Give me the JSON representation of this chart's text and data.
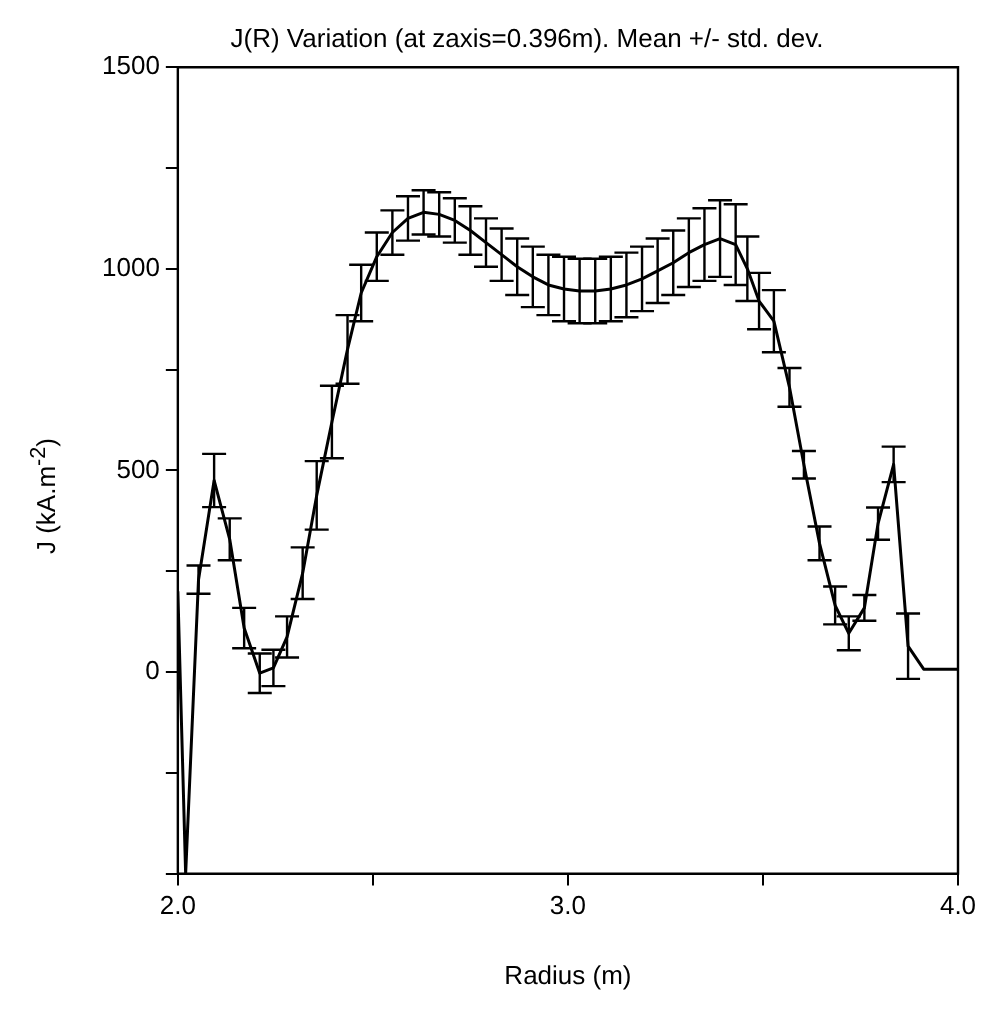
{
  "chart_data": {
    "type": "line",
    "title": "J(R) Variation (at zaxis=0.396m). Mean +/- std. dev.",
    "xlabel": "Radius (m)",
    "ylabel": "J (kA.m$^{-2}$)",
    "color": "#000000",
    "grid": false,
    "x": [
      2.0,
      2.02,
      2.053,
      2.093,
      2.133,
      2.17,
      2.21,
      2.245,
      2.28,
      2.32,
      2.356,
      2.395,
      2.435,
      2.47,
      2.51,
      2.55,
      2.59,
      2.63,
      2.67,
      2.71,
      2.75,
      2.79,
      2.83,
      2.87,
      2.91,
      2.95,
      2.99,
      3.03,
      3.07,
      3.11,
      3.15,
      3.19,
      3.23,
      3.27,
      3.31,
      3.35,
      3.39,
      3.43,
      3.46,
      3.49,
      3.528,
      3.568,
      3.605,
      3.645,
      3.685,
      3.72,
      3.76,
      3.795,
      3.835,
      3.872,
      3.912,
      4.0
    ],
    "values": [
      200,
      -500,
      229,
      475,
      329,
      109,
      -3,
      10,
      87,
      245,
      438,
      620,
      800,
      940,
      1030,
      1090,
      1125,
      1140,
      1135,
      1120,
      1095,
      1065,
      1035,
      1005,
      980,
      960,
      950,
      945,
      945,
      950,
      960,
      975,
      995,
      1015,
      1040,
      1060,
      1075,
      1060,
      1000,
      920,
      870,
      706,
      514,
      319,
      165,
      96,
      159,
      368,
      515,
      64,
      7,
      7
    ],
    "errors": [
      null,
      null,
      35,
      66,
      52,
      50,
      49,
      45,
      51,
      64,
      85,
      90,
      85,
      70,
      60,
      55,
      55,
      55,
      55,
      55,
      60,
      60,
      65,
      70,
      75,
      75,
      80,
      80,
      80,
      80,
      80,
      80,
      80,
      80,
      85,
      90,
      95,
      100,
      80,
      70,
      77,
      48,
      34,
      42,
      47,
      42,
      32,
      40,
      44,
      81,
      null,
      null
    ],
    "xlim": [
      2.0,
      4.0
    ],
    "ylim": [
      -500,
      1500
    ],
    "xticks": [
      {
        "value": 2.0,
        "label": "2.0"
      },
      {
        "value": 2.5,
        "label": null
      },
      {
        "value": 3.0,
        "label": "3.0"
      },
      {
        "value": 3.5,
        "label": null
      },
      {
        "value": 4.0,
        "label": "4.0"
      }
    ],
    "yticks": [
      {
        "value": -500,
        "label": null
      },
      {
        "value": -250,
        "label": null
      },
      0,
      {
        "value": 250,
        "label": null
      },
      500,
      {
        "value": 750,
        "label": null
      },
      1000,
      {
        "value": 1250,
        "label": null
      },
      1500
    ]
  }
}
